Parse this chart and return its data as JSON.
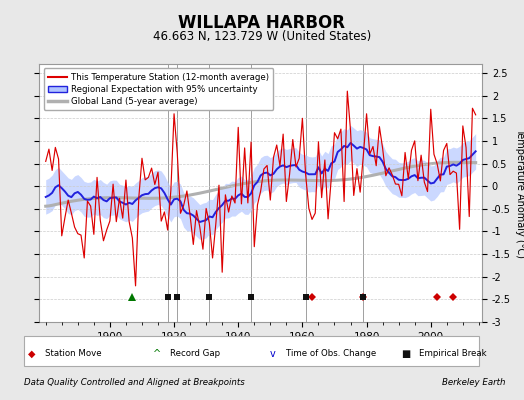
{
  "title": "WILLAPA HARBOR",
  "subtitle": "46.663 N, 123.729 W (United States)",
  "ylabel": "Temperature Anomaly (°C)",
  "xlabel_note": "Data Quality Controlled and Aligned at Breakpoints",
  "credit": "Berkeley Earth",
  "year_start": 1880,
  "year_end": 2014,
  "ylim": [
    -3.0,
    2.7
  ],
  "yticks": [
    -3,
    -2.5,
    -2,
    -1.5,
    -1,
    -0.5,
    0,
    0.5,
    1,
    1.5,
    2,
    2.5
  ],
  "xticks": [
    1900,
    1920,
    1940,
    1960,
    1980,
    2000
  ],
  "bg_color": "#e8e8e8",
  "plot_bg_color": "#ffffff",
  "grid_color": "#cccccc",
  "station_move_years": [
    1963,
    1979,
    2002,
    2007
  ],
  "record_gap_years": [
    1907
  ],
  "time_obs_years": [],
  "empirical_break_years": [
    1918,
    1921,
    1931,
    1944,
    1961,
    1979
  ],
  "break_line_years": [
    1918,
    1931,
    1961
  ],
  "seed": 17
}
